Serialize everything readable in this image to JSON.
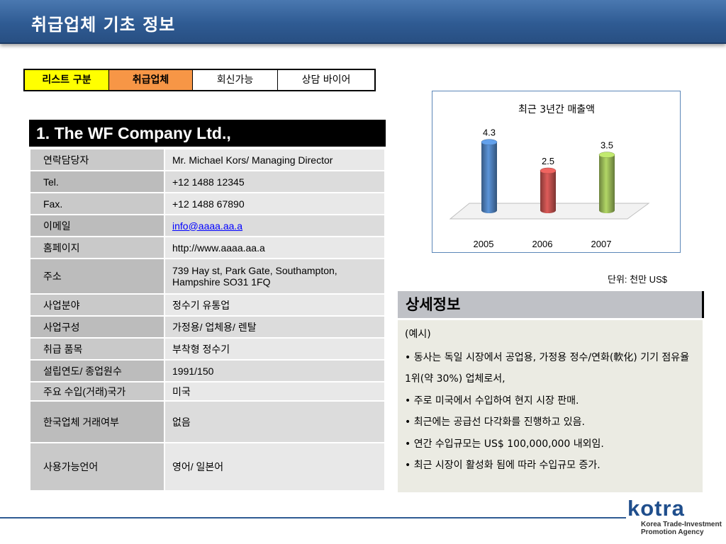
{
  "header": {
    "title": "취급업체 기초 정보"
  },
  "tabs": [
    {
      "label": "리스트 구분",
      "color": "#ffff00"
    },
    {
      "label": "취급업체",
      "color": "#f79646"
    },
    {
      "label": "회신가능",
      "color": "#ffffff"
    },
    {
      "label": "상담 바이어",
      "color": "#ffffff"
    }
  ],
  "company": {
    "name": "1. The WF Company Ltd.,",
    "rows": [
      {
        "label": "연락담당자",
        "value": "Mr. Michael Kors/ Managing Director"
      },
      {
        "label": "Tel.",
        "value": "+12 1488 12345"
      },
      {
        "label": "Fax.",
        "value": "+12 1488 67890"
      },
      {
        "label": "이메일",
        "value": "info@aaaa.aa.a"
      },
      {
        "label": "홈페이지",
        "value": "http://www.aaaa.aa.a"
      },
      {
        "label": "주소",
        "value": "739 Hay st, Park Gate, Southampton, Hampshire SO31 1FQ"
      },
      {
        "label": "사업분야",
        "value": "정수기 유통업"
      },
      {
        "label": "사업구성",
        "value": "가정용/ 업체용/ 렌탈"
      },
      {
        "label": "취급 품목",
        "value": "부착형 정수기"
      },
      {
        "label": "설립연도/ 종업원수",
        "value": "1991/150"
      },
      {
        "label": "주요 수입(거래)국가",
        "value": "미국"
      },
      {
        "label": "한국업체 거래여부",
        "value": "없음"
      },
      {
        "label": "사용가능언어",
        "value": "영어/ 일본어"
      }
    ]
  },
  "chart_data": {
    "type": "bar",
    "title": "최근 3년간 매출액",
    "categories": [
      "2005",
      "2006",
      "2007"
    ],
    "values": [
      4.3,
      2.5,
      3.5
    ],
    "colors": [
      "#4f81bd",
      "#c0504d",
      "#9bbb59"
    ],
    "unit_label": "단위: 천만 US$",
    "grid": false,
    "legend": "none"
  },
  "detail": {
    "title": "상세정보",
    "example": "(예시)",
    "bullets": [
      "• 동사는 독일 시장에서 공업용, 가정용 정수/연화(軟化) 기기 점유율 1위(약 30%) 업체로서,",
      "• 주로 미국에서 수입하여 현지 시장 판매.",
      "• 최근에는 공급선 다각화를 진행하고 있음.",
      "• 연간 수입규모는 US$ 100,000,000 내외임.",
      "• 최근 시장이 활성화 됨에 따라 수입규모 증가."
    ]
  },
  "logo": {
    "word": "kotra",
    "line1": "Korea Trade-Investment",
    "line2": "Promotion Agency",
    "color": "#1f4e8c"
  }
}
